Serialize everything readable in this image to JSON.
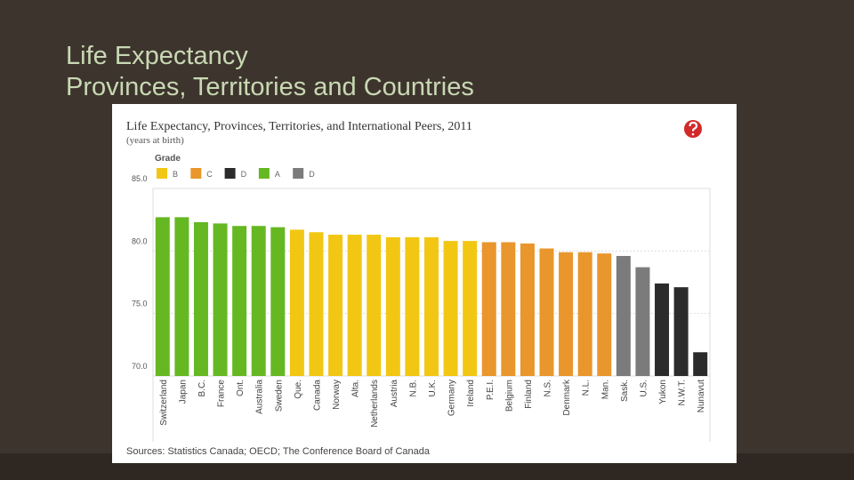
{
  "slide": {
    "title_lines": [
      "Life Expectancy",
      "Provinces, Territories and Countries"
    ]
  },
  "chart_data": {
    "type": "bar",
    "title": "Life Expectancy, Provinces, Territories, and International Peers, 2011",
    "subtitle": "(years at birth)",
    "legend": {
      "title": "Grade",
      "items": [
        {
          "label": "B",
          "color": "#f2c714"
        },
        {
          "label": "C",
          "color": "#e9962c"
        },
        {
          "label": "D",
          "color": "#2b2b2b"
        },
        {
          "label": "A",
          "color": "#66b822"
        },
        {
          "label": "D",
          "color": "#7b7b7b"
        }
      ]
    },
    "categories": [
      "Switzerland",
      "Japan",
      "B.C.",
      "France",
      "Ont.",
      "Australia",
      "Sweden",
      "Que.",
      "Canada",
      "Norway",
      "Alta.",
      "Netherlands",
      "Austria",
      "N.B.",
      "U.K.",
      "Germany",
      "Ireland",
      "P.E.I.",
      "Belgium",
      "Finland",
      "N.S.",
      "Denmark",
      "N.L.",
      "Man.",
      "Sask.",
      "U.S.",
      "Yukon",
      "N.W.T.",
      "Nunavut"
    ],
    "values": [
      82.7,
      82.7,
      82.3,
      82.2,
      82.0,
      82.0,
      81.9,
      81.7,
      81.5,
      81.3,
      81.3,
      81.3,
      81.1,
      81.1,
      81.1,
      80.8,
      80.8,
      80.7,
      80.7,
      80.6,
      80.2,
      79.9,
      79.9,
      79.8,
      79.6,
      78.7,
      77.4,
      77.1,
      71.9
    ],
    "colors": [
      "#66b822",
      "#66b822",
      "#66b822",
      "#66b822",
      "#66b822",
      "#66b822",
      "#66b822",
      "#f2c714",
      "#f2c714",
      "#f2c714",
      "#f2c714",
      "#f2c714",
      "#f2c714",
      "#f2c714",
      "#f2c714",
      "#f2c714",
      "#f2c714",
      "#e9962c",
      "#e9962c",
      "#e9962c",
      "#e9962c",
      "#e9962c",
      "#e9962c",
      "#e9962c",
      "#7b7b7b",
      "#7b7b7b",
      "#2b2b2b",
      "#2b2b2b",
      "#2b2b2b"
    ],
    "ylim": [
      70,
      85
    ],
    "yticks": [
      {
        "value": 70,
        "label": "70.0"
      },
      {
        "value": 75,
        "label": "75.0"
      },
      {
        "value": 80,
        "label": "80.0"
      },
      {
        "value": 85,
        "label": "85.0"
      }
    ],
    "grid": true,
    "source": "Sources: Statistics Canada; OECD; The Conference Board of Canada"
  }
}
